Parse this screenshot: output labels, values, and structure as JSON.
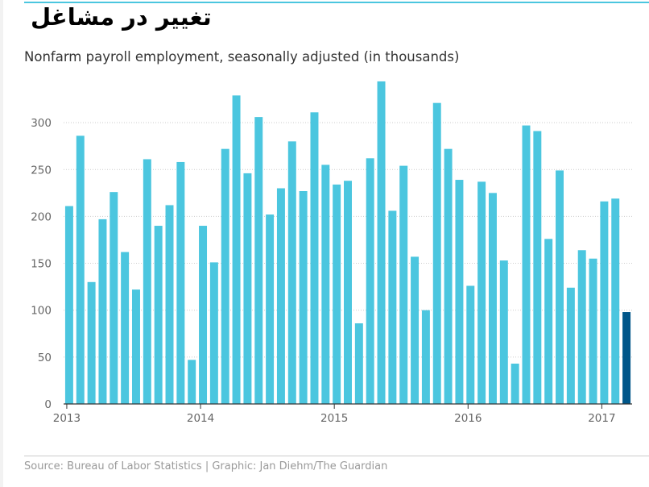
{
  "header": {
    "title": "تغییر در مشاغل",
    "subtitle": "Nonfarm payroll employment, seasonally adjusted (in thousands)"
  },
  "footer": {
    "source": "Source: Bureau of Labor Statistics | Graphic: Jan Diehm/The Guardian"
  },
  "colors": {
    "bar": "#4bc6df",
    "highlight": "#005689",
    "grid": "#cccccc",
    "axis": "#333333"
  },
  "chart_data": {
    "type": "bar",
    "title": "تغییر در مشاغل",
    "subtitle": "Nonfarm payroll employment, seasonally adjusted (in thousands)",
    "xlabel": "",
    "ylabel": "",
    "ylim": [
      0,
      350
    ],
    "yticks": [
      0,
      50,
      100,
      150,
      200,
      250,
      300
    ],
    "grid": true,
    "categories": [
      "Jan 2013",
      "Feb 2013",
      "Mar 2013",
      "Apr 2013",
      "May 2013",
      "Jun 2013",
      "Jul 2013",
      "Aug 2013",
      "Sep 2013",
      "Oct 2013",
      "Nov 2013",
      "Dec 2013",
      "Jan 2014",
      "Feb 2014",
      "Mar 2014",
      "Apr 2014",
      "May 2014",
      "Jun 2014",
      "Jul 2014",
      "Aug 2014",
      "Sep 2014",
      "Oct 2014",
      "Nov 2014",
      "Dec 2014",
      "Jan 2015",
      "Feb 2015",
      "Mar 2015",
      "Apr 2015",
      "May 2015",
      "Jun 2015",
      "Jul 2015",
      "Aug 2015",
      "Sep 2015",
      "Oct 2015",
      "Nov 2015",
      "Dec 2015",
      "Jan 2016",
      "Feb 2016",
      "Mar 2016",
      "Apr 2016",
      "May 2016",
      "Jun 2016",
      "Jul 2016",
      "Aug 2016",
      "Sep 2016",
      "Oct 2016",
      "Nov 2016",
      "Dec 2016",
      "Jan 2017",
      "Feb 2017",
      "Mar 2017"
    ],
    "x_tick_labels": [
      {
        "label": "2013",
        "index": 0
      },
      {
        "label": "2014",
        "index": 12
      },
      {
        "label": "2015",
        "index": 24
      },
      {
        "label": "2016",
        "index": 36
      },
      {
        "label": "2017",
        "index": 48
      }
    ],
    "values": [
      211,
      286,
      130,
      197,
      226,
      162,
      122,
      261,
      190,
      212,
      258,
      47,
      190,
      151,
      272,
      329,
      246,
      306,
      202,
      230,
      280,
      227,
      311,
      255,
      234,
      238,
      86,
      262,
      344,
      206,
      254,
      157,
      100,
      321,
      272,
      239,
      126,
      237,
      225,
      153,
      43,
      297,
      291,
      176,
      249,
      124,
      164,
      155,
      216,
      219,
      98
    ],
    "highlight_index": 50
  }
}
